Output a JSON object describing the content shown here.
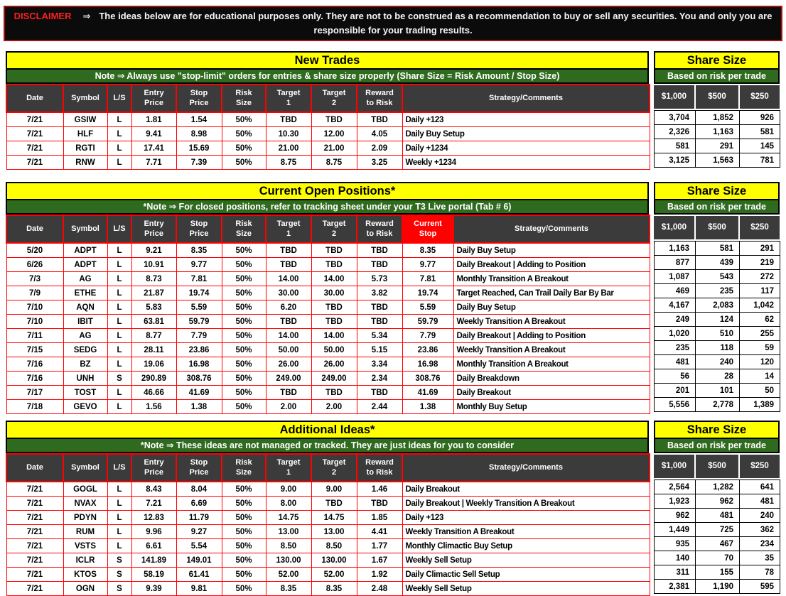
{
  "disclaimer": {
    "label": "DISCLAIMER",
    "arrow": "⇒",
    "text": "The ideas below are for educational purposes only. They are not to be construed as a recommendation to buy or sell any securities. You and only you are responsible for your trading results."
  },
  "colors": {
    "banner_yellow": "#ffff00",
    "note_green": "#2f6b1e",
    "header_gray": "#3b3b3b",
    "grid_red": "#ff0000",
    "current_stop_red": "#ff0000",
    "disclaimer_text_red": "#ff1f1f",
    "disclaimer_border_red": "#a81414",
    "share_grid_black": "#000000"
  },
  "share_size": {
    "title": "Share Size",
    "subtitle": "Based on risk per trade",
    "columns": [
      {
        "key": "s1000",
        "label": "$1,000"
      },
      {
        "key": "s500",
        "label": "$500"
      },
      {
        "key": "s250",
        "label": "$250"
      }
    ]
  },
  "main_columns": [
    {
      "key": "date",
      "label": "Date"
    },
    {
      "key": "symbol",
      "label": "Symbol"
    },
    {
      "key": "ls",
      "label": "L/S"
    },
    {
      "key": "entry",
      "label": "Entry\nPrice"
    },
    {
      "key": "stop",
      "label": "Stop\nPrice"
    },
    {
      "key": "risk",
      "label": "Risk\nSize"
    },
    {
      "key": "t1",
      "label": "Target\n1"
    },
    {
      "key": "t2",
      "label": "Target\n2"
    },
    {
      "key": "rr",
      "label": "Reward\nto Risk"
    },
    {
      "key": "strategy",
      "label": "Strategy/Comments"
    }
  ],
  "current_stop_column": {
    "key": "cstop",
    "label": "Current\nStop"
  },
  "tables": [
    {
      "id": "new-trades",
      "title": "New Trades",
      "note": "Note ⇒ Always use \"stop-limit\" orders for entries & share size properly (Share Size = Risk Amount / Stop Size)",
      "has_current_stop": false,
      "rows": [
        {
          "date": "7/21",
          "symbol": "GSIW",
          "ls": "L",
          "entry": "1.81",
          "stop": "1.54",
          "risk": "50%",
          "t1": "TBD",
          "t2": "TBD",
          "rr": "TBD",
          "strategy": "Daily +123",
          "s1000": "3,704",
          "s500": "1,852",
          "s250": "926"
        },
        {
          "date": "7/21",
          "symbol": "HLF",
          "ls": "L",
          "entry": "9.41",
          "stop": "8.98",
          "risk": "50%",
          "t1": "10.30",
          "t2": "12.00",
          "rr": "4.05",
          "strategy": "Daily Buy Setup",
          "s1000": "2,326",
          "s500": "1,163",
          "s250": "581"
        },
        {
          "date": "7/21",
          "symbol": "RGTI",
          "ls": "L",
          "entry": "17.41",
          "stop": "15.69",
          "risk": "50%",
          "t1": "21.00",
          "t2": "21.00",
          "rr": "2.09",
          "strategy": "Daily +1234",
          "s1000": "581",
          "s500": "291",
          "s250": "145"
        },
        {
          "date": "7/21",
          "symbol": "RNW",
          "ls": "L",
          "entry": "7.71",
          "stop": "7.39",
          "risk": "50%",
          "t1": "8.75",
          "t2": "8.75",
          "rr": "3.25",
          "strategy": "Weekly +1234",
          "s1000": "3,125",
          "s500": "1,563",
          "s250": "781"
        }
      ]
    },
    {
      "id": "open-positions",
      "title": "Current Open Positions*",
      "note": "*Note ⇒ For closed positions, refer to tracking sheet under your T3 Live portal (Tab # 6)",
      "has_current_stop": true,
      "rows": [
        {
          "date": "5/20",
          "symbol": "ADPT",
          "ls": "L",
          "entry": "9.21",
          "stop": "8.35",
          "risk": "50%",
          "t1": "TBD",
          "t2": "TBD",
          "rr": "TBD",
          "cstop": "8.35",
          "strategy": "Daily Buy Setup",
          "s1000": "1,163",
          "s500": "581",
          "s250": "291"
        },
        {
          "date": "6/26",
          "symbol": "ADPT",
          "ls": "L",
          "entry": "10.91",
          "stop": "9.77",
          "risk": "50%",
          "t1": "TBD",
          "t2": "TBD",
          "rr": "TBD",
          "cstop": "9.77",
          "strategy": "Daily Breakout | Adding to Position",
          "s1000": "877",
          "s500": "439",
          "s250": "219"
        },
        {
          "date": "7/3",
          "symbol": "AG",
          "ls": "L",
          "entry": "8.73",
          "stop": "7.81",
          "risk": "50%",
          "t1": "14.00",
          "t2": "14.00",
          "rr": "5.73",
          "cstop": "7.81",
          "strategy": "Monthly Transition A Breakout",
          "s1000": "1,087",
          "s500": "543",
          "s250": "272"
        },
        {
          "date": "7/9",
          "symbol": "ETHE",
          "ls": "L",
          "entry": "21.87",
          "stop": "19.74",
          "risk": "50%",
          "t1": "30.00",
          "t2": "30.00",
          "rr": "3.82",
          "cstop": "19.74",
          "strategy": "Target Reached, Can Trail Daily Bar By Bar",
          "s1000": "469",
          "s500": "235",
          "s250": "117"
        },
        {
          "date": "7/10",
          "symbol": "AQN",
          "ls": "L",
          "entry": "5.83",
          "stop": "5.59",
          "risk": "50%",
          "t1": "6.20",
          "t2": "TBD",
          "rr": "TBD",
          "cstop": "5.59",
          "strategy": "Daily Buy Setup",
          "s1000": "4,167",
          "s500": "2,083",
          "s250": "1,042"
        },
        {
          "date": "7/10",
          "symbol": "IBIT",
          "ls": "L",
          "entry": "63.81",
          "stop": "59.79",
          "risk": "50%",
          "t1": "TBD",
          "t2": "TBD",
          "rr": "TBD",
          "cstop": "59.79",
          "strategy": "Weekly Transition A Breakout",
          "s1000": "249",
          "s500": "124",
          "s250": "62"
        },
        {
          "date": "7/11",
          "symbol": "AG",
          "ls": "L",
          "entry": "8.77",
          "stop": "7.79",
          "risk": "50%",
          "t1": "14.00",
          "t2": "14.00",
          "rr": "5.34",
          "cstop": "7.79",
          "strategy": "Daily Breakout | Adding to Position",
          "s1000": "1,020",
          "s500": "510",
          "s250": "255"
        },
        {
          "date": "7/15",
          "symbol": "SEDG",
          "ls": "L",
          "entry": "28.11",
          "stop": "23.86",
          "risk": "50%",
          "t1": "50.00",
          "t2": "50.00",
          "rr": "5.15",
          "cstop": "23.86",
          "strategy": "Weekly Transition A Breakout",
          "s1000": "235",
          "s500": "118",
          "s250": "59"
        },
        {
          "date": "7/16",
          "symbol": "BZ",
          "ls": "L",
          "entry": "19.06",
          "stop": "16.98",
          "risk": "50%",
          "t1": "26.00",
          "t2": "26.00",
          "rr": "3.34",
          "cstop": "16.98",
          "strategy": "Monthly Transition A Breakout",
          "s1000": "481",
          "s500": "240",
          "s250": "120"
        },
        {
          "date": "7/16",
          "symbol": "UNH",
          "ls": "S",
          "entry": "290.89",
          "stop": "308.76",
          "risk": "50%",
          "t1": "249.00",
          "t2": "249.00",
          "rr": "2.34",
          "cstop": "308.76",
          "strategy": "Daily Breakdown",
          "s1000": "56",
          "s500": "28",
          "s250": "14"
        },
        {
          "date": "7/17",
          "symbol": "TOST",
          "ls": "L",
          "entry": "46.66",
          "stop": "41.69",
          "risk": "50%",
          "t1": "TBD",
          "t2": "TBD",
          "rr": "TBD",
          "cstop": "41.69",
          "strategy": "Daily Breakout",
          "s1000": "201",
          "s500": "101",
          "s250": "50"
        },
        {
          "date": "7/18",
          "symbol": "GEVO",
          "ls": "L",
          "entry": "1.56",
          "stop": "1.38",
          "risk": "50%",
          "t1": "2.00",
          "t2": "2.00",
          "rr": "2.44",
          "cstop": "1.38",
          "strategy": "Monthly Buy Setup",
          "s1000": "5,556",
          "s500": "2,778",
          "s250": "1,389"
        }
      ]
    },
    {
      "id": "additional-ideas",
      "title": "Additional Ideas*",
      "note": "*Note ⇒ These ideas are not managed or tracked. They are just ideas for you to consider",
      "has_current_stop": false,
      "rows": [
        {
          "date": "7/21",
          "symbol": "GOGL",
          "ls": "L",
          "entry": "8.43",
          "stop": "8.04",
          "risk": "50%",
          "t1": "9.00",
          "t2": "9.00",
          "rr": "1.46",
          "strategy": "Daily Breakout",
          "s1000": "2,564",
          "s500": "1,282",
          "s250": "641"
        },
        {
          "date": "7/21",
          "symbol": "NVAX",
          "ls": "L",
          "entry": "7.21",
          "stop": "6.69",
          "risk": "50%",
          "t1": "8.00",
          "t2": "TBD",
          "rr": "TBD",
          "strategy": "Daily Breakout | Weekly Transition A Breakout",
          "s1000": "1,923",
          "s500": "962",
          "s250": "481"
        },
        {
          "date": "7/21",
          "symbol": "PDYN",
          "ls": "L",
          "entry": "12.83",
          "stop": "11.79",
          "risk": "50%",
          "t1": "14.75",
          "t2": "14.75",
          "rr": "1.85",
          "strategy": "Daily +123",
          "s1000": "962",
          "s500": "481",
          "s250": "240"
        },
        {
          "date": "7/21",
          "symbol": "RUM",
          "ls": "L",
          "entry": "9.96",
          "stop": "9.27",
          "risk": "50%",
          "t1": "13.00",
          "t2": "13.00",
          "rr": "4.41",
          "strategy": "Weekly Transition A Breakout",
          "s1000": "1,449",
          "s500": "725",
          "s250": "362"
        },
        {
          "date": "7/21",
          "symbol": "VSTS",
          "ls": "L",
          "entry": "6.61",
          "stop": "5.54",
          "risk": "50%",
          "t1": "8.50",
          "t2": "8.50",
          "rr": "1.77",
          "strategy": "Monthly Climactic Buy Setup",
          "s1000": "935",
          "s500": "467",
          "s250": "234"
        },
        {
          "date": "7/21",
          "symbol": "ICLR",
          "ls": "S",
          "entry": "141.89",
          "stop": "149.01",
          "risk": "50%",
          "t1": "130.00",
          "t2": "130.00",
          "rr": "1.67",
          "strategy": "Weekly Sell Setup",
          "s1000": "140",
          "s500": "70",
          "s250": "35"
        },
        {
          "date": "7/21",
          "symbol": "KTOS",
          "ls": "S",
          "entry": "58.19",
          "stop": "61.41",
          "risk": "50%",
          "t1": "52.00",
          "t2": "52.00",
          "rr": "1.92",
          "strategy": "Daily Climactic Sell Setup",
          "s1000": "311",
          "s500": "155",
          "s250": "78"
        },
        {
          "date": "7/21",
          "symbol": "OGN",
          "ls": "S",
          "entry": "9.39",
          "stop": "9.81",
          "risk": "50%",
          "t1": "8.35",
          "t2": "8.35",
          "rr": "2.48",
          "strategy": "Weekly Sell Setup",
          "s1000": "2,381",
          "s500": "1,190",
          "s250": "595"
        }
      ]
    }
  ]
}
